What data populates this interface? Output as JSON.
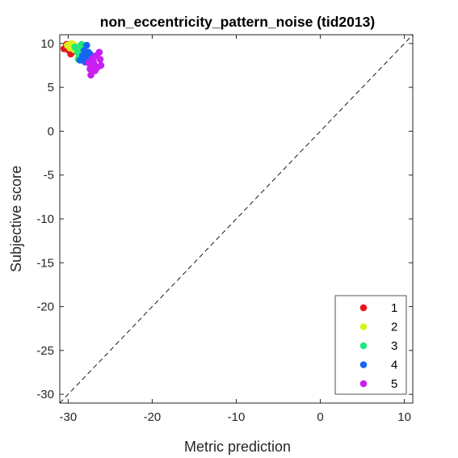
{
  "chart_data": {
    "type": "scatter",
    "title": "non_eccentricity_pattern_noise (tid2013)",
    "xlabel": "Metric prediction",
    "ylabel": "Subjective score",
    "xlim": [
      -31,
      11
    ],
    "ylim": [
      -31,
      11
    ],
    "xticks": [
      -30,
      -20,
      -10,
      0,
      10
    ],
    "xtick_labels": [
      "-30",
      "-20",
      "-10",
      "0",
      "10"
    ],
    "yticks": [
      10,
      5,
      0,
      -5,
      -10,
      -15,
      -20,
      -25,
      -30
    ],
    "ytick_labels": [
      "10",
      "5",
      "0",
      "-5",
      "-10",
      "-15",
      "-20",
      "-25",
      "-30"
    ],
    "grid": false,
    "box": true,
    "reference_line": {
      "type": "identity",
      "style": "dashed",
      "color": "#000000"
    },
    "legend_position": "bottom-right",
    "series": [
      {
        "name": "1",
        "color": "#e8141b",
        "points": [
          [
            -30.5,
            9.4
          ],
          [
            -30.2,
            9.9
          ],
          [
            -29.9,
            9.2
          ],
          [
            -29.7,
            8.8
          ],
          [
            -29.5,
            9.6
          ],
          [
            -29.3,
            9.1
          ],
          [
            -30.0,
            9.7
          ]
        ]
      },
      {
        "name": "2",
        "color": "#d8f21b",
        "points": [
          [
            -30.1,
            9.8
          ],
          [
            -29.8,
            9.5
          ],
          [
            -29.6,
            10.0
          ],
          [
            -29.3,
            9.3
          ],
          [
            -29.0,
            9.7
          ],
          [
            -28.8,
            9.4
          ],
          [
            -29.4,
            9.9
          ]
        ]
      },
      {
        "name": "3",
        "color": "#22e87e",
        "points": [
          [
            -29.2,
            9.6
          ],
          [
            -28.9,
            9.0
          ],
          [
            -28.7,
            8.5
          ],
          [
            -28.5,
            9.7
          ],
          [
            -28.2,
            9.3
          ],
          [
            -28.0,
            8.7
          ],
          [
            -28.8,
            8.2
          ],
          [
            -28.4,
            9.9
          ]
        ]
      },
      {
        "name": "4",
        "color": "#1565f0",
        "points": [
          [
            -28.6,
            8.1
          ],
          [
            -28.3,
            8.6
          ],
          [
            -28.1,
            9.2
          ],
          [
            -27.8,
            9.8
          ],
          [
            -27.6,
            9.0
          ],
          [
            -27.9,
            8.3
          ],
          [
            -27.4,
            8.8
          ],
          [
            -28.0,
            7.9
          ]
        ]
      },
      {
        "name": "5",
        "color": "#c81ff2",
        "points": [
          [
            -27.6,
            7.8
          ],
          [
            -27.4,
            7.1
          ],
          [
            -27.3,
            6.4
          ],
          [
            -27.1,
            8.3
          ],
          [
            -26.9,
            7.6
          ],
          [
            -26.7,
            8.6
          ],
          [
            -26.5,
            7.3
          ],
          [
            -26.3,
            9.0
          ],
          [
            -26.2,
            8.2
          ],
          [
            -26.1,
            7.5
          ],
          [
            -26.8,
            6.9
          ],
          [
            -27.0,
            7.9
          ]
        ]
      }
    ]
  }
}
